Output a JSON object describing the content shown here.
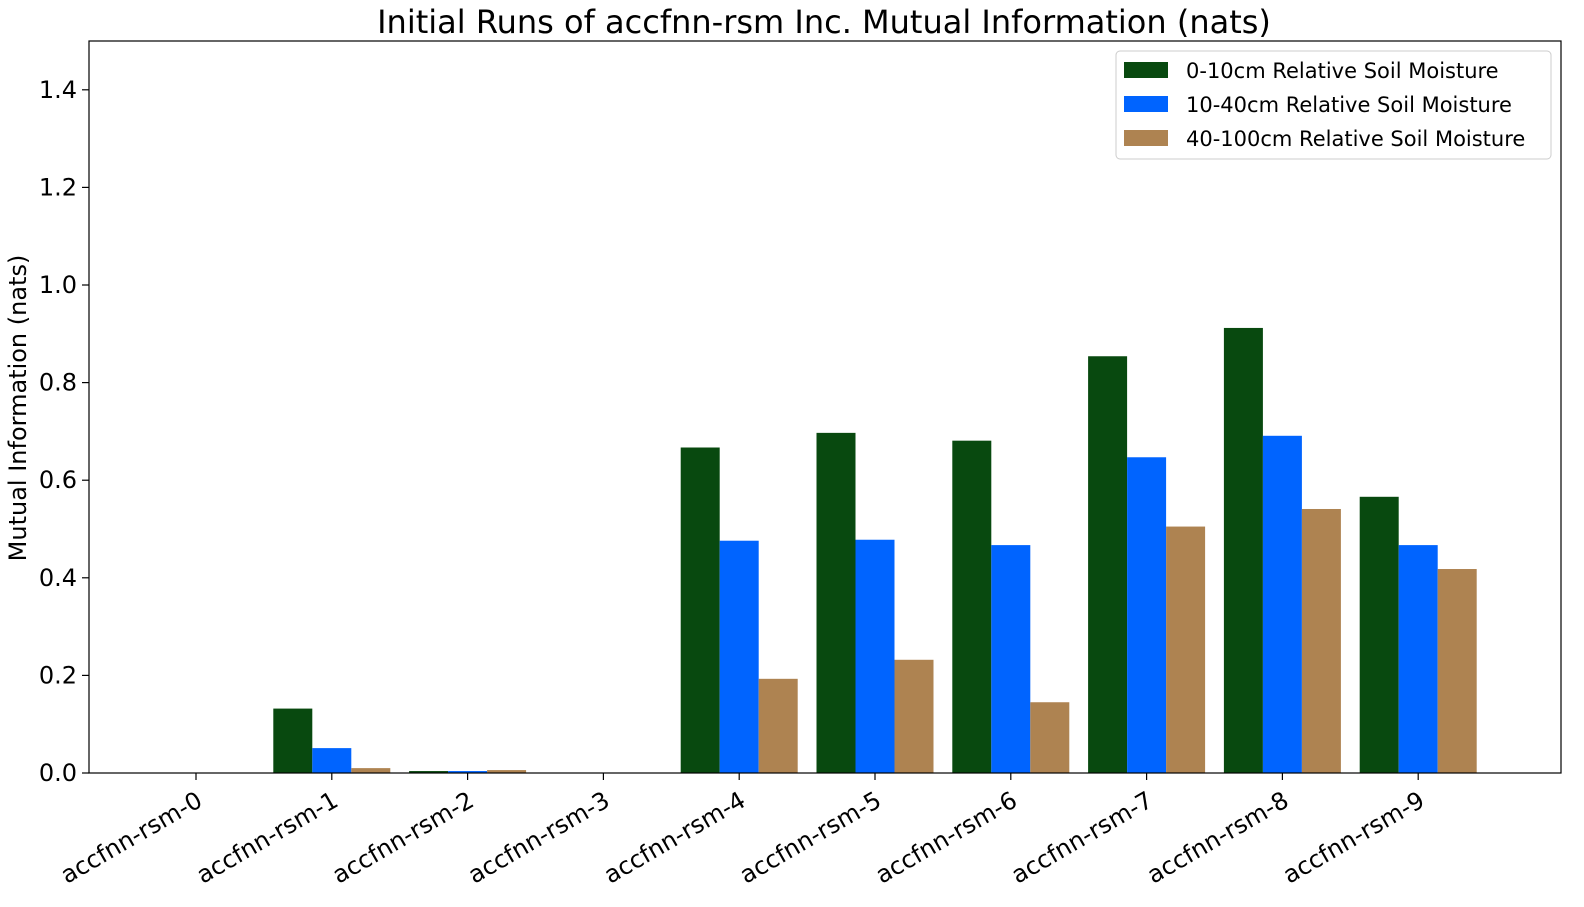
{
  "chart_data": {
    "type": "bar",
    "title": "Initial Runs of accfnn-rsm Inc. Mutual Information (nats)",
    "xlabel": "",
    "ylabel": "Mutual Information (nats)",
    "ylim": [
      0,
      1.5
    ],
    "yticks": [
      "0.0",
      "0.2",
      "0.4",
      "0.6",
      "0.8",
      "1.0",
      "1.2",
      "1.4"
    ],
    "ytick_values": [
      0,
      0.2,
      0.4,
      0.6,
      0.8,
      1.0,
      1.2,
      1.4
    ],
    "grid": false,
    "legend_position": "top-right",
    "categories": [
      "accfnn-rsm-0",
      "accfnn-rsm-1",
      "accfnn-rsm-2",
      "accfnn-rsm-3",
      "accfnn-rsm-4",
      "accfnn-rsm-5",
      "accfnn-rsm-6",
      "accfnn-rsm-7",
      "accfnn-rsm-8",
      "accfnn-rsm-9"
    ],
    "series": [
      {
        "name": "0-10cm Relative Soil Moisture",
        "color": "#08490f",
        "values": [
          0.0,
          0.132,
          0.004,
          0.0,
          0.667,
          0.697,
          0.681,
          0.854,
          0.912,
          0.566
        ]
      },
      {
        "name": "10-40cm Relative Soil Moisture",
        "color": "#0064ff",
        "values": [
          0.0,
          0.051,
          0.004,
          0.0,
          0.476,
          0.478,
          0.467,
          0.647,
          0.691,
          0.467
        ]
      },
      {
        "name": "40-100cm Relative Soil Moisture",
        "color": "#ae8351",
        "values": [
          0.0,
          0.01,
          0.006,
          0.0,
          0.193,
          0.232,
          0.145,
          0.505,
          0.541,
          0.418
        ]
      }
    ]
  }
}
